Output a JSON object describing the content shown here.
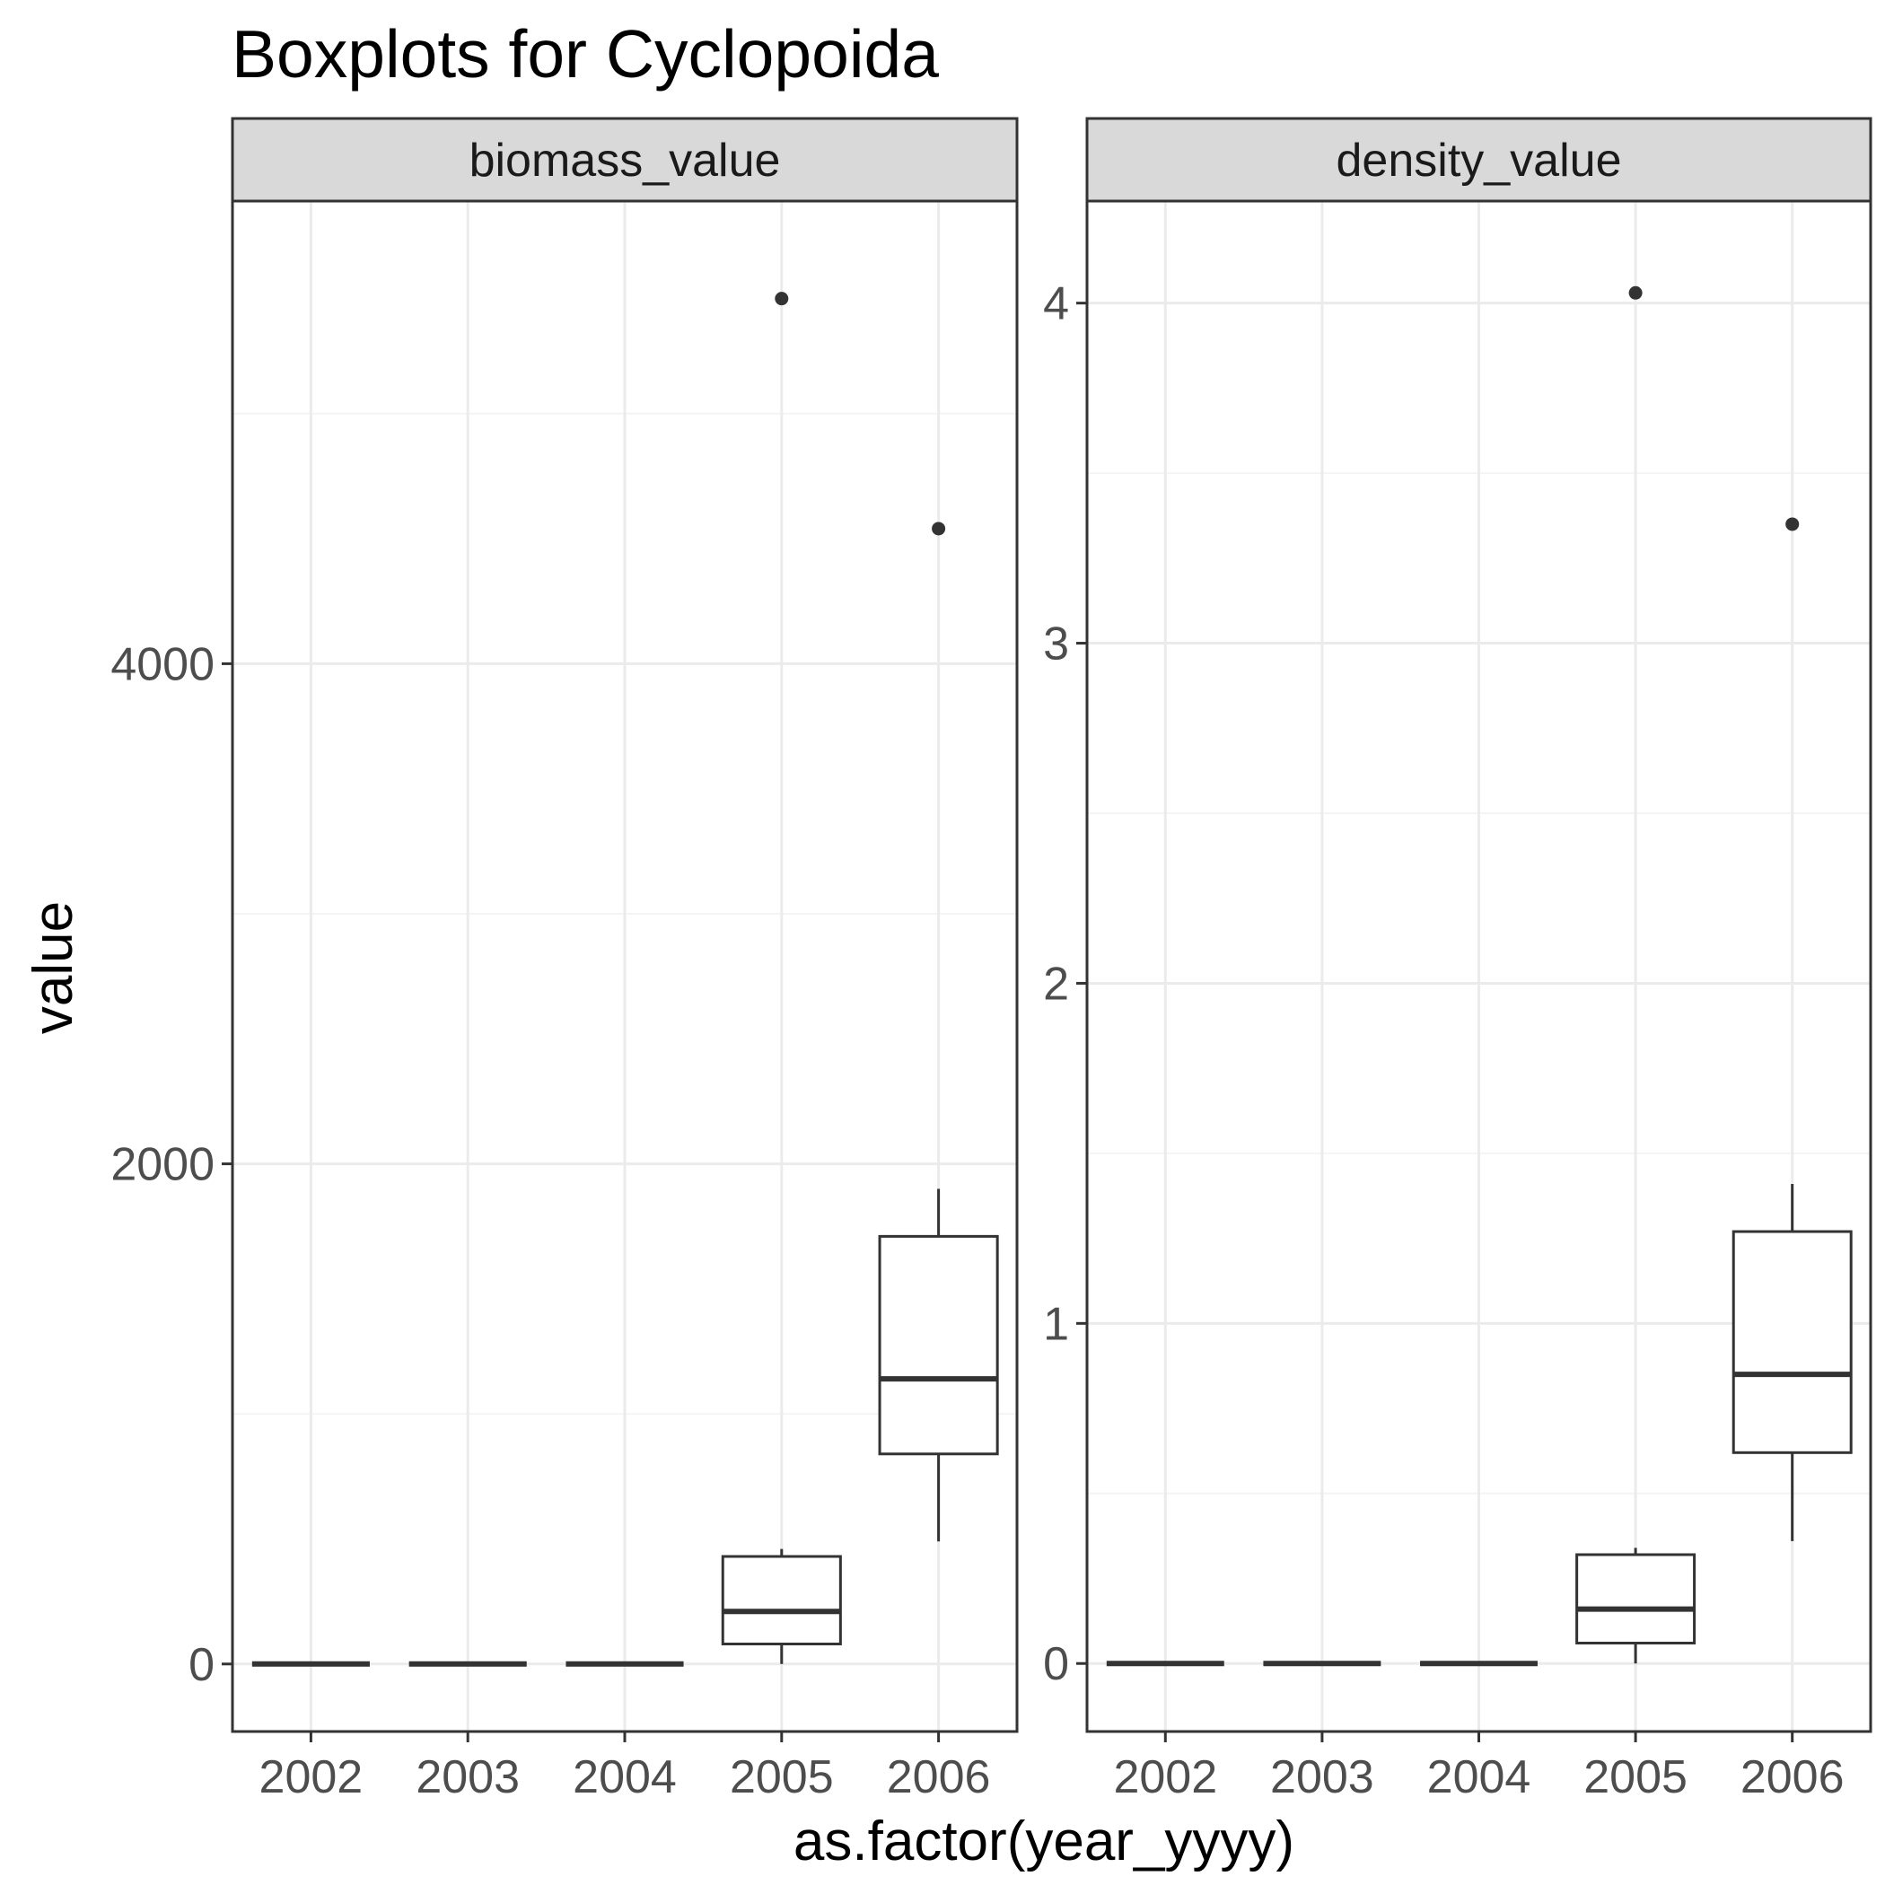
{
  "title": "Boxplots for Cyclopoida",
  "ylabel": "value",
  "xlabel": "as.factor(year_yyyy)",
  "chart_data": {
    "type": "boxplot",
    "title": "Boxplots for Cyclopoida",
    "xlabel": "as.factor(year_yyyy)",
    "ylabel": "value",
    "categories": [
      "2002",
      "2003",
      "2004",
      "2005",
      "2006"
    ],
    "grid": true,
    "facets": [
      {
        "name": "biomass_value",
        "ylim": [
          -270,
          5850
        ],
        "yticks": [
          0,
          2000,
          4000
        ],
        "yticks_minor": [
          1000,
          3000,
          5000
        ],
        "boxes": [
          {
            "category": "2002",
            "lower_whisker": 0,
            "q1": 0,
            "median": 0,
            "q3": 0,
            "upper_whisker": 0,
            "outliers": []
          },
          {
            "category": "2003",
            "lower_whisker": 0,
            "q1": 0,
            "median": 0,
            "q3": 0,
            "upper_whisker": 0,
            "outliers": []
          },
          {
            "category": "2004",
            "lower_whisker": 0,
            "q1": 0,
            "median": 0,
            "q3": 0,
            "upper_whisker": 0,
            "outliers": []
          },
          {
            "category": "2005",
            "lower_whisker": 0,
            "q1": 80,
            "median": 210,
            "q3": 430,
            "upper_whisker": 460,
            "outliers": [
              5460
            ]
          },
          {
            "category": "2006",
            "lower_whisker": 490,
            "q1": 840,
            "median": 1140,
            "q3": 1710,
            "upper_whisker": 1900,
            "outliers": [
              4540
            ]
          }
        ]
      },
      {
        "name": "density_value",
        "ylim": [
          -0.2,
          4.3
        ],
        "yticks": [
          0,
          1,
          2,
          3,
          4
        ],
        "yticks_minor": [
          0.5,
          1.5,
          2.5,
          3.5
        ],
        "boxes": [
          {
            "category": "2002",
            "lower_whisker": 0,
            "q1": 0,
            "median": 0,
            "q3": 0,
            "upper_whisker": 0,
            "outliers": []
          },
          {
            "category": "2003",
            "lower_whisker": 0,
            "q1": 0,
            "median": 0,
            "q3": 0,
            "upper_whisker": 0,
            "outliers": []
          },
          {
            "category": "2004",
            "lower_whisker": 0,
            "q1": 0,
            "median": 0,
            "q3": 0,
            "upper_whisker": 0,
            "outliers": []
          },
          {
            "category": "2005",
            "lower_whisker": 0,
            "q1": 0.06,
            "median": 0.16,
            "q3": 0.32,
            "upper_whisker": 0.34,
            "outliers": [
              4.03
            ]
          },
          {
            "category": "2006",
            "lower_whisker": 0.36,
            "q1": 0.62,
            "median": 0.85,
            "q3": 1.27,
            "upper_whisker": 1.41,
            "outliers": [
              3.35
            ]
          }
        ]
      }
    ]
  }
}
